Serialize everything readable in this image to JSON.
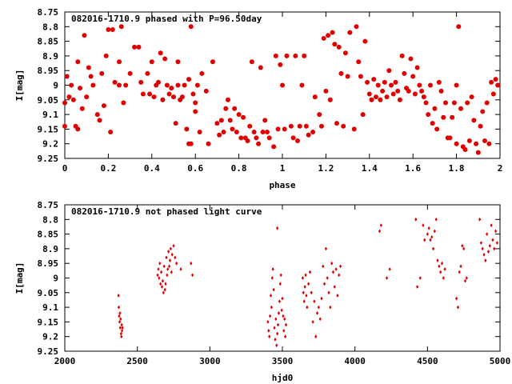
{
  "chart_data": [
    {
      "type": "scatter",
      "title": "082016-1710.9 phased with P=96.50day",
      "xlabel": "phase",
      "ylabel": "I[mag]",
      "xlim": [
        0,
        2
      ],
      "ylim": [
        9.25,
        8.75
      ],
      "y_inverted": true,
      "grid": false,
      "marker": "star",
      "color": "#e00000",
      "xticks": [
        0,
        0.2,
        0.4,
        0.6,
        0.8,
        1,
        1.2,
        1.4,
        1.6,
        1.8,
        2
      ],
      "xtick_labels": [
        "0",
        "0.2",
        "0.4",
        "0.6",
        "0.8",
        "1",
        "1.2",
        "1.4",
        "1.6",
        "1.8",
        "2"
      ],
      "yticks": [
        8.75,
        8.8,
        8.85,
        8.9,
        8.95,
        9,
        9.05,
        9.1,
        9.15,
        9.2,
        9.25
      ],
      "ytick_labels": [
        "8.75",
        "8.8",
        "8.85",
        "8.9",
        "8.95",
        "9",
        "9.05",
        "9.1",
        "9.15",
        "9.2",
        "9.25"
      ],
      "points": [
        [
          0.0,
          9.06
        ],
        [
          0.0,
          9.14
        ],
        [
          0.01,
          8.97
        ],
        [
          0.02,
          9.04
        ],
        [
          0.03,
          9.0
        ],
        [
          0.04,
          9.05
        ],
        [
          0.05,
          9.14
        ],
        [
          0.06,
          8.92
        ],
        [
          0.06,
          9.15
        ],
        [
          0.07,
          9.01
        ],
        [
          0.08,
          9.08
        ],
        [
          0.09,
          8.83
        ],
        [
          0.1,
          9.04
        ],
        [
          0.11,
          8.94
        ],
        [
          0.12,
          8.97
        ],
        [
          0.13,
          9.0
        ],
        [
          0.15,
          9.1
        ],
        [
          0.16,
          9.12
        ],
        [
          0.17,
          8.96
        ],
        [
          0.18,
          9.07
        ],
        [
          0.19,
          8.9
        ],
        [
          0.2,
          8.81
        ],
        [
          0.21,
          9.16
        ],
        [
          0.22,
          8.81
        ],
        [
          0.23,
          8.99
        ],
        [
          0.25,
          8.92
        ],
        [
          0.25,
          9.0
        ],
        [
          0.26,
          8.8
        ],
        [
          0.27,
          9.06
        ],
        [
          0.28,
          9.0
        ],
        [
          0.3,
          8.96
        ],
        [
          0.32,
          8.87
        ],
        [
          0.34,
          8.87
        ],
        [
          0.35,
          8.99
        ],
        [
          0.36,
          9.03
        ],
        [
          0.38,
          8.96
        ],
        [
          0.39,
          9.03
        ],
        [
          0.4,
          8.92
        ],
        [
          0.41,
          9.04
        ],
        [
          0.42,
          9.0
        ],
        [
          0.43,
          8.99
        ],
        [
          0.44,
          8.89
        ],
        [
          0.45,
          9.05
        ],
        [
          0.46,
          8.91
        ],
        [
          0.47,
          9.0
        ],
        [
          0.48,
          9.03
        ],
        [
          0.49,
          9.01
        ],
        [
          0.5,
          9.04
        ],
        [
          0.51,
          9.13
        ],
        [
          0.52,
          8.92
        ],
        [
          0.52,
          9.0
        ],
        [
          0.53,
          9.05
        ],
        [
          0.54,
          9.04
        ],
        [
          0.55,
          9.0
        ],
        [
          0.56,
          9.15
        ],
        [
          0.57,
          8.98
        ],
        [
          0.57,
          9.2
        ],
        [
          0.58,
          8.8
        ],
        [
          0.58,
          9.2
        ],
        [
          0.59,
          9.03
        ],
        [
          0.6,
          9.06
        ],
        [
          0.6,
          9.09
        ],
        [
          0.61,
          9.0
        ],
        [
          0.62,
          9.16
        ],
        [
          0.63,
          8.96
        ],
        [
          0.65,
          9.02
        ],
        [
          0.66,
          9.2
        ],
        [
          0.68,
          8.92
        ],
        [
          0.7,
          9.13
        ],
        [
          0.71,
          9.17
        ],
        [
          0.72,
          9.12
        ],
        [
          0.73,
          9.16
        ],
        [
          0.74,
          9.08
        ],
        [
          0.75,
          9.05
        ],
        [
          0.76,
          9.12
        ],
        [
          0.77,
          9.15
        ],
        [
          0.78,
          9.08
        ],
        [
          0.79,
          9.16
        ],
        [
          0.8,
          9.1
        ],
        [
          0.81,
          9.18
        ],
        [
          0.82,
          9.11
        ],
        [
          0.83,
          9.18
        ],
        [
          0.84,
          9.19
        ],
        [
          0.85,
          9.14
        ],
        [
          0.86,
          8.92
        ],
        [
          0.87,
          9.16
        ],
        [
          0.88,
          9.18
        ],
        [
          0.89,
          9.2
        ],
        [
          0.9,
          8.94
        ],
        [
          0.91,
          9.16
        ],
        [
          0.92,
          9.12
        ],
        [
          0.93,
          9.16
        ],
        [
          0.94,
          9.18
        ],
        [
          0.96,
          9.21
        ],
        [
          0.97,
          8.9
        ],
        [
          0.98,
          9.15
        ],
        [
          0.99,
          8.93
        ],
        [
          1.0,
          9.0
        ],
        [
          1.01,
          9.15
        ],
        [
          1.02,
          8.9
        ],
        [
          1.04,
          9.14
        ],
        [
          1.05,
          9.18
        ],
        [
          1.06,
          8.9
        ],
        [
          1.07,
          9.19
        ],
        [
          1.08,
          9.14
        ],
        [
          1.09,
          9.0
        ],
        [
          1.1,
          8.9
        ],
        [
          1.11,
          9.14
        ],
        [
          1.12,
          9.17
        ],
        [
          1.14,
          9.16
        ],
        [
          1.15,
          9.04
        ],
        [
          1.17,
          9.1
        ],
        [
          1.18,
          9.14
        ],
        [
          1.19,
          8.84
        ],
        [
          1.2,
          9.02
        ],
        [
          1.21,
          8.83
        ],
        [
          1.22,
          9.05
        ],
        [
          1.23,
          8.82
        ],
        [
          1.24,
          8.86
        ],
        [
          1.25,
          9.13
        ],
        [
          1.26,
          8.87
        ],
        [
          1.27,
          8.96
        ],
        [
          1.28,
          9.14
        ],
        [
          1.29,
          8.89
        ],
        [
          1.3,
          8.97
        ],
        [
          1.31,
          8.82
        ],
        [
          1.33,
          9.15
        ],
        [
          1.34,
          8.8
        ],
        [
          1.35,
          8.92
        ],
        [
          1.36,
          8.97
        ],
        [
          1.37,
          9.1
        ],
        [
          1.38,
          8.85
        ],
        [
          1.39,
          8.99
        ],
        [
          1.4,
          9.03
        ],
        [
          1.41,
          9.05
        ],
        [
          1.42,
          8.98
        ],
        [
          1.43,
          9.04
        ],
        [
          1.44,
          9.0
        ],
        [
          1.45,
          9.05
        ],
        [
          1.46,
          9.02
        ],
        [
          1.47,
          8.99
        ],
        [
          1.48,
          9.04
        ],
        [
          1.49,
          8.95
        ],
        [
          1.5,
          9.0
        ],
        [
          1.51,
          9.03
        ],
        [
          1.52,
          8.99
        ],
        [
          1.53,
          9.02
        ],
        [
          1.54,
          9.05
        ],
        [
          1.55,
          8.9
        ],
        [
          1.56,
          8.96
        ],
        [
          1.57,
          9.01
        ],
        [
          1.58,
          9.02
        ],
        [
          1.59,
          8.91
        ],
        [
          1.6,
          8.97
        ],
        [
          1.61,
          9.03
        ],
        [
          1.62,
          8.94
        ],
        [
          1.63,
          9.0
        ],
        [
          1.64,
          9.02
        ],
        [
          1.65,
          9.04
        ],
        [
          1.66,
          9.06
        ],
        [
          1.67,
          9.1
        ],
        [
          1.68,
          9.0
        ],
        [
          1.69,
          9.13
        ],
        [
          1.7,
          9.08
        ],
        [
          1.71,
          9.15
        ],
        [
          1.72,
          8.99
        ],
        [
          1.73,
          9.02
        ],
        [
          1.74,
          9.11
        ],
        [
          1.75,
          9.06
        ],
        [
          1.76,
          9.18
        ],
        [
          1.77,
          9.18
        ],
        [
          1.78,
          9.11
        ],
        [
          1.79,
          9.06
        ],
        [
          1.8,
          9.2
        ],
        [
          1.8,
          9.0
        ],
        [
          1.81,
          8.8
        ],
        [
          1.82,
          9.08
        ],
        [
          1.83,
          9.21
        ],
        [
          1.84,
          9.22
        ],
        [
          1.85,
          9.06
        ],
        [
          1.86,
          9.19
        ],
        [
          1.87,
          9.04
        ],
        [
          1.88,
          9.12
        ],
        [
          1.89,
          9.2
        ],
        [
          1.9,
          9.23
        ],
        [
          1.91,
          9.14
        ],
        [
          1.92,
          9.09
        ],
        [
          1.93,
          9.19
        ],
        [
          1.94,
          9.06
        ],
        [
          1.95,
          9.2
        ],
        [
          1.96,
          8.99
        ],
        [
          1.97,
          9.03
        ],
        [
          1.98,
          8.98
        ],
        [
          1.99,
          9.0
        ]
      ]
    },
    {
      "type": "scatter",
      "title": "082016-1710.9 not phased light curve",
      "xlabel": "hjd0",
      "ylabel": "I[mag]",
      "xlim": [
        2000,
        5000
      ],
      "ylim": [
        9.25,
        8.75
      ],
      "y_inverted": true,
      "grid": false,
      "marker": "diamond",
      "color": "#e00000",
      "xticks": [
        2000,
        2500,
        3000,
        3500,
        4000,
        4500,
        5000
      ],
      "xtick_labels": [
        "2000",
        "2500",
        "3000",
        "3500",
        "4000",
        "4500",
        "5000"
      ],
      "yticks": [
        8.75,
        8.8,
        8.85,
        8.9,
        8.95,
        9,
        9.05,
        9.1,
        9.15,
        9.2,
        9.25
      ],
      "ytick_labels": [
        "8.75",
        "8.8",
        "8.85",
        "8.9",
        "8.95",
        "9",
        "9.05",
        "9.1",
        "9.15",
        "9.2",
        "9.25"
      ],
      "points": [
        [
          2370,
          9.06
        ],
        [
          2372,
          9.1
        ],
        [
          2375,
          9.13
        ],
        [
          2378,
          9.15
        ],
        [
          2380,
          9.12
        ],
        [
          2382,
          9.17
        ],
        [
          2385,
          9.14
        ],
        [
          2388,
          9.19
        ],
        [
          2390,
          9.2
        ],
        [
          2392,
          9.16
        ],
        [
          2395,
          9.18
        ],
        [
          2398,
          9.17
        ],
        [
          2640,
          8.99
        ],
        [
          2645,
          8.97
        ],
        [
          2650,
          9.0
        ],
        [
          2655,
          8.95
        ],
        [
          2660,
          9.02
        ],
        [
          2665,
          8.98
        ],
        [
          2670,
          9.03
        ],
        [
          2675,
          9.01
        ],
        [
          2680,
          9.05
        ],
        [
          2685,
          8.96
        ],
        [
          2690,
          9.04
        ],
        [
          2695,
          9.02
        ],
        [
          2700,
          8.93
        ],
        [
          2705,
          8.99
        ],
        [
          2710,
          8.97
        ],
        [
          2715,
          8.91
        ],
        [
          2720,
          8.96
        ],
        [
          2725,
          8.94
        ],
        [
          2730,
          8.9
        ],
        [
          2735,
          8.98
        ],
        [
          2740,
          8.92
        ],
        [
          2750,
          8.89
        ],
        [
          2760,
          8.93
        ],
        [
          2770,
          8.95
        ],
        [
          2800,
          8.97
        ],
        [
          2870,
          8.95
        ],
        [
          2880,
          8.99
        ],
        [
          3400,
          9.15
        ],
        [
          3405,
          9.18
        ],
        [
          3410,
          9.2
        ],
        [
          3415,
          9.13
        ],
        [
          3420,
          9.06
        ],
        [
          3425,
          9.1
        ],
        [
          3430,
          9.0
        ],
        [
          3435,
          8.97
        ],
        [
          3440,
          9.04
        ],
        [
          3445,
          9.17
        ],
        [
          3450,
          9.21
        ],
        [
          3455,
          9.14
        ],
        [
          3460,
          9.23
        ],
        [
          3465,
          9.19
        ],
        [
          3470,
          9.16
        ],
        [
          3475,
          9.12
        ],
        [
          3480,
          9.08
        ],
        [
          3485,
          9.02
        ],
        [
          3490,
          8.99
        ],
        [
          3495,
          9.11
        ],
        [
          3500,
          9.07
        ],
        [
          3505,
          9.13
        ],
        [
          3510,
          9.18
        ],
        [
          3515,
          9.14
        ],
        [
          3520,
          9.2
        ],
        [
          3525,
          9.16
        ],
        [
          3465,
          8.83
        ],
        [
          3640,
          9.0
        ],
        [
          3645,
          9.05
        ],
        [
          3650,
          9.08
        ],
        [
          3655,
          9.03
        ],
        [
          3660,
          8.99
        ],
        [
          3665,
          9.06
        ],
        [
          3670,
          9.1
        ],
        [
          3680,
          9.02
        ],
        [
          3690,
          8.98
        ],
        [
          3700,
          9.05
        ],
        [
          3710,
          9.15
        ],
        [
          3720,
          9.08
        ],
        [
          3730,
          9.2
        ],
        [
          3740,
          9.12
        ],
        [
          3750,
          9.1
        ],
        [
          3760,
          9.14
        ],
        [
          3770,
          9.07
        ],
        [
          3780,
          8.96
        ],
        [
          3790,
          9.02
        ],
        [
          3800,
          8.9
        ],
        [
          3810,
          9.0
        ],
        [
          3820,
          9.05
        ],
        [
          3830,
          9.1
        ],
        [
          3840,
          8.95
        ],
        [
          3850,
          8.98
        ],
        [
          3860,
          9.03
        ],
        [
          3870,
          8.97
        ],
        [
          3880,
          9.06
        ],
        [
          3890,
          8.99
        ],
        [
          3900,
          8.96
        ],
        [
          4170,
          8.84
        ],
        [
          4180,
          8.82
        ],
        [
          4220,
          9.0
        ],
        [
          4240,
          8.97
        ],
        [
          4420,
          8.8
        ],
        [
          4430,
          9.03
        ],
        [
          4450,
          9.0
        ],
        [
          4470,
          8.82
        ],
        [
          4480,
          8.87
        ],
        [
          4500,
          8.85
        ],
        [
          4510,
          8.83
        ],
        [
          4520,
          8.87
        ],
        [
          4530,
          8.86
        ],
        [
          4540,
          8.9
        ],
        [
          4550,
          8.84
        ],
        [
          4560,
          8.8
        ],
        [
          4570,
          8.94
        ],
        [
          4580,
          8.96
        ],
        [
          4590,
          8.98
        ],
        [
          4600,
          8.95
        ],
        [
          4610,
          9.0
        ],
        [
          4620,
          8.97
        ],
        [
          4700,
          9.07
        ],
        [
          4710,
          9.1
        ],
        [
          4720,
          8.98
        ],
        [
          4730,
          8.96
        ],
        [
          4740,
          8.89
        ],
        [
          4750,
          8.9
        ],
        [
          4760,
          9.01
        ],
        [
          4770,
          9.0
        ],
        [
          4860,
          8.8
        ],
        [
          4870,
          8.88
        ],
        [
          4880,
          8.9
        ],
        [
          4890,
          8.92
        ],
        [
          4900,
          8.94
        ],
        [
          4910,
          8.85
        ],
        [
          4920,
          8.91
        ],
        [
          4930,
          8.89
        ],
        [
          4940,
          8.82
        ],
        [
          4950,
          8.87
        ],
        [
          4960,
          8.9
        ],
        [
          4970,
          8.84
        ],
        [
          4980,
          8.88
        ]
      ]
    }
  ]
}
